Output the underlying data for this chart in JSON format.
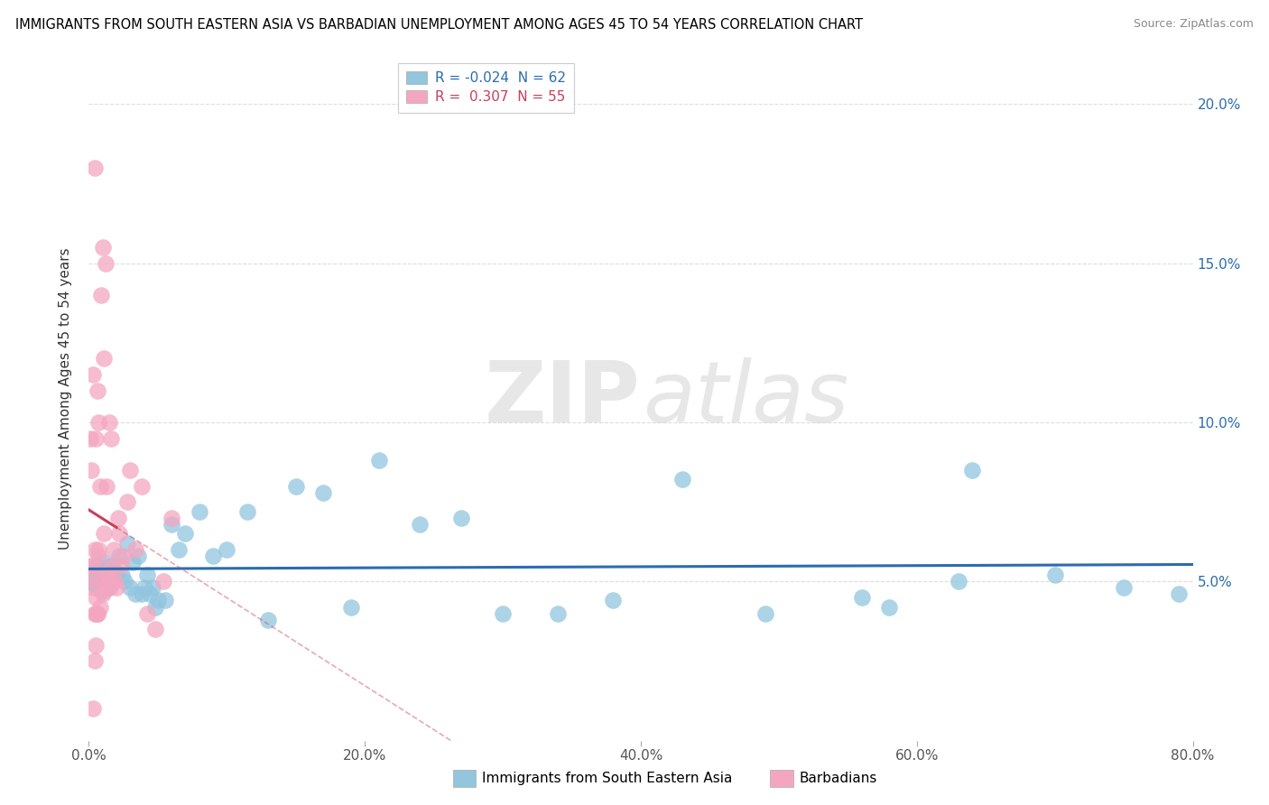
{
  "title": "IMMIGRANTS FROM SOUTH EASTERN ASIA VS BARBADIAN UNEMPLOYMENT AMONG AGES 45 TO 54 YEARS CORRELATION CHART",
  "source": "Source: ZipAtlas.com",
  "ylabel": "Unemployment Among Ages 45 to 54 years",
  "legend_r_blue": "-0.024",
  "legend_n_blue": "62",
  "legend_r_pink": "0.307",
  "legend_n_pink": "55",
  "blue_color": "#92c5de",
  "pink_color": "#f4a6c0",
  "blue_line_color": "#2b6cb0",
  "pink_line_color": "#c9405a",
  "watermark_zip": "ZIP",
  "watermark_atlas": "atlas",
  "blue_scatter_x": [
    0.001,
    0.002,
    0.003,
    0.004,
    0.005,
    0.006,
    0.007,
    0.008,
    0.009,
    0.01,
    0.011,
    0.012,
    0.013,
    0.014,
    0.015,
    0.016,
    0.017,
    0.018,
    0.019,
    0.02,
    0.022,
    0.024,
    0.026,
    0.028,
    0.03,
    0.032,
    0.034,
    0.036,
    0.038,
    0.04,
    0.042,
    0.044,
    0.046,
    0.048,
    0.05,
    0.055,
    0.06,
    0.065,
    0.07,
    0.08,
    0.09,
    0.1,
    0.115,
    0.13,
    0.15,
    0.17,
    0.19,
    0.21,
    0.24,
    0.27,
    0.3,
    0.34,
    0.38,
    0.43,
    0.49,
    0.56,
    0.63,
    0.7,
    0.75,
    0.79,
    0.64,
    0.58
  ],
  "blue_scatter_y": [
    0.052,
    0.05,
    0.053,
    0.049,
    0.051,
    0.055,
    0.048,
    0.054,
    0.05,
    0.047,
    0.056,
    0.049,
    0.052,
    0.053,
    0.048,
    0.055,
    0.051,
    0.05,
    0.053,
    0.052,
    0.058,
    0.052,
    0.05,
    0.062,
    0.048,
    0.056,
    0.046,
    0.058,
    0.046,
    0.048,
    0.052,
    0.046,
    0.048,
    0.042,
    0.044,
    0.044,
    0.068,
    0.06,
    0.065,
    0.072,
    0.058,
    0.06,
    0.072,
    0.038,
    0.08,
    0.078,
    0.042,
    0.088,
    0.068,
    0.07,
    0.04,
    0.04,
    0.044,
    0.082,
    0.04,
    0.045,
    0.05,
    0.052,
    0.048,
    0.046,
    0.085,
    0.042
  ],
  "pink_scatter_x": [
    0.001,
    0.001,
    0.002,
    0.002,
    0.003,
    0.003,
    0.004,
    0.004,
    0.005,
    0.005,
    0.005,
    0.006,
    0.006,
    0.007,
    0.007,
    0.008,
    0.008,
    0.009,
    0.009,
    0.01,
    0.01,
    0.011,
    0.011,
    0.012,
    0.012,
    0.013,
    0.013,
    0.014,
    0.015,
    0.015,
    0.016,
    0.016,
    0.017,
    0.018,
    0.019,
    0.02,
    0.021,
    0.022,
    0.023,
    0.025,
    0.028,
    0.03,
    0.034,
    0.038,
    0.042,
    0.048,
    0.054,
    0.06,
    0.003,
    0.004,
    0.005,
    0.006,
    0.007,
    0.003,
    0.004
  ],
  "pink_scatter_y": [
    0.055,
    0.095,
    0.052,
    0.085,
    0.048,
    0.115,
    0.06,
    0.18,
    0.045,
    0.04,
    0.095,
    0.04,
    0.11,
    0.058,
    0.1,
    0.042,
    0.08,
    0.05,
    0.14,
    0.046,
    0.155,
    0.065,
    0.12,
    0.048,
    0.15,
    0.053,
    0.08,
    0.052,
    0.048,
    0.1,
    0.05,
    0.095,
    0.055,
    0.06,
    0.05,
    0.048,
    0.07,
    0.065,
    0.055,
    0.058,
    0.075,
    0.085,
    0.06,
    0.08,
    0.04,
    0.035,
    0.05,
    0.07,
    0.055,
    0.025,
    0.03,
    0.04,
    0.06,
    0.01,
    0.04
  ],
  "xlim": [
    0.0,
    0.8
  ],
  "ylim": [
    0.0,
    0.215
  ],
  "yticks": [
    0.0,
    0.05,
    0.1,
    0.15,
    0.2
  ],
  "ytick_labels_right": [
    "",
    "5.0%",
    "10.0%",
    "15.0%",
    "20.0%"
  ],
  "xticks": [
    0.0,
    0.2,
    0.4,
    0.6,
    0.8
  ],
  "xtick_labels": [
    "0.0%",
    "20.0%",
    "40.0%",
    "60.0%",
    "80.0%"
  ],
  "grid_color": "#dddddd",
  "pink_line_x_solid_end": 0.02,
  "pink_line_x_dash_end": 0.35
}
